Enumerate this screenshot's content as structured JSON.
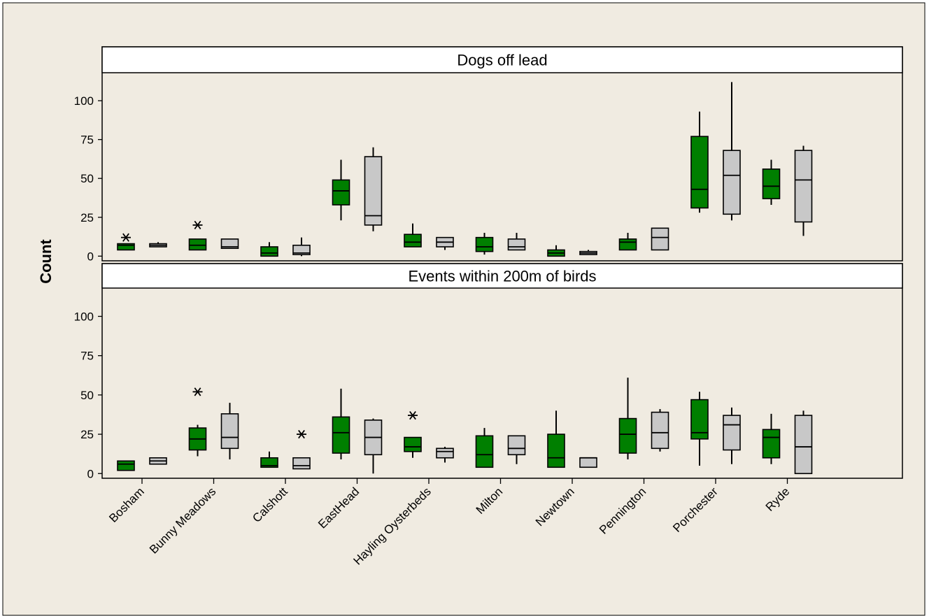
{
  "chart_data": {
    "type": "boxplot",
    "ylabel": "Count",
    "categories": [
      "Bosham",
      "Bunny Meadows",
      "Calshott",
      "EastHead",
      "Hayling Oysterbeds",
      "Milton",
      "Newtown",
      "Pennington",
      "Porchester",
      "Ryde"
    ],
    "y_ticks": [
      0,
      25,
      50,
      75,
      100
    ],
    "ylim": [
      -3,
      118
    ],
    "colors": {
      "green": "#007f00",
      "grey": "#c8c8c8",
      "background": "#f0ebe1"
    },
    "panels": [
      {
        "title": "Dogs off lead",
        "boxes": [
          {
            "category": "Bosham",
            "group": "green",
            "whisker_low": 4,
            "q1": 4,
            "median": 7,
            "q3": 8,
            "whisker_high": 8,
            "outliers": [
              12
            ]
          },
          {
            "category": "Bosham",
            "group": "grey",
            "whisker_low": 6,
            "q1": 6,
            "median": 7,
            "q3": 8,
            "whisker_high": 9,
            "outliers": []
          },
          {
            "category": "Bunny Meadows",
            "group": "green",
            "whisker_low": 4,
            "q1": 4,
            "median": 7,
            "q3": 11,
            "whisker_high": 11,
            "outliers": [
              20
            ]
          },
          {
            "category": "Bunny Meadows",
            "group": "grey",
            "whisker_low": 5,
            "q1": 5,
            "median": 6,
            "q3": 11,
            "whisker_high": 11,
            "outliers": []
          },
          {
            "category": "Calshott",
            "group": "green",
            "whisker_low": 0,
            "q1": 0,
            "median": 2,
            "q3": 6,
            "whisker_high": 9,
            "outliers": []
          },
          {
            "category": "Calshott",
            "group": "grey",
            "whisker_low": 0,
            "q1": 1,
            "median": 2,
            "q3": 7,
            "whisker_high": 12,
            "outliers": []
          },
          {
            "category": "EastHead",
            "group": "green",
            "whisker_low": 23,
            "q1": 33,
            "median": 42,
            "q3": 49,
            "whisker_high": 62,
            "outliers": []
          },
          {
            "category": "EastHead",
            "group": "grey",
            "whisker_low": 16,
            "q1": 20,
            "median": 26,
            "q3": 64,
            "whisker_high": 70,
            "outliers": []
          },
          {
            "category": "Hayling Oysterbeds",
            "group": "green",
            "whisker_low": 6,
            "q1": 6,
            "median": 9,
            "q3": 14,
            "whisker_high": 21,
            "outliers": []
          },
          {
            "category": "Hayling Oysterbeds",
            "group": "grey",
            "whisker_low": 4,
            "q1": 6,
            "median": 9,
            "q3": 12,
            "whisker_high": 12,
            "outliers": []
          },
          {
            "category": "Milton",
            "group": "green",
            "whisker_low": 1,
            "q1": 3,
            "median": 6,
            "q3": 12,
            "whisker_high": 15,
            "outliers": []
          },
          {
            "category": "Milton",
            "group": "grey",
            "whisker_low": 4,
            "q1": 4,
            "median": 6,
            "q3": 11,
            "whisker_high": 15,
            "outliers": []
          },
          {
            "category": "Newtown",
            "group": "green",
            "whisker_low": 0,
            "q1": 0,
            "median": 2,
            "q3": 4,
            "whisker_high": 7,
            "outliers": []
          },
          {
            "category": "Newtown",
            "group": "grey",
            "whisker_low": 1,
            "q1": 1,
            "median": 2,
            "q3": 3,
            "whisker_high": 4,
            "outliers": []
          },
          {
            "category": "Pennington",
            "group": "green",
            "whisker_low": 4,
            "q1": 4,
            "median": 9,
            "q3": 11,
            "whisker_high": 15,
            "outliers": []
          },
          {
            "category": "Pennington",
            "group": "grey",
            "whisker_low": 4,
            "q1": 4,
            "median": 12,
            "q3": 18,
            "whisker_high": 18,
            "outliers": []
          },
          {
            "category": "Porchester",
            "group": "green",
            "whisker_low": 28,
            "q1": 31,
            "median": 43,
            "q3": 77,
            "whisker_high": 93,
            "outliers": []
          },
          {
            "category": "Porchester",
            "group": "grey",
            "whisker_low": 23,
            "q1": 27,
            "median": 52,
            "q3": 68,
            "whisker_high": 112,
            "outliers": []
          },
          {
            "category": "Ryde",
            "group": "green",
            "whisker_low": 33,
            "q1": 37,
            "median": 45,
            "q3": 56,
            "whisker_high": 62,
            "outliers": []
          },
          {
            "category": "Ryde",
            "group": "grey",
            "whisker_low": 13,
            "q1": 22,
            "median": 49,
            "q3": 68,
            "whisker_high": 71,
            "outliers": []
          }
        ]
      },
      {
        "title": "Events within 200m of birds",
        "boxes": [
          {
            "category": "Bosham",
            "group": "green",
            "whisker_low": 2,
            "q1": 2,
            "median": 6,
            "q3": 8,
            "whisker_high": 8,
            "outliers": []
          },
          {
            "category": "Bosham",
            "group": "grey",
            "whisker_low": 6,
            "q1": 6,
            "median": 8,
            "q3": 10,
            "whisker_high": 10,
            "outliers": []
          },
          {
            "category": "Bunny Meadows",
            "group": "green",
            "whisker_low": 11,
            "q1": 15,
            "median": 22,
            "q3": 29,
            "whisker_high": 31,
            "outliers": [
              52
            ]
          },
          {
            "category": "Bunny Meadows",
            "group": "grey",
            "whisker_low": 9,
            "q1": 16,
            "median": 23,
            "q3": 38,
            "whisker_high": 45,
            "outliers": []
          },
          {
            "category": "Calshott",
            "group": "green",
            "whisker_low": 4,
            "q1": 4,
            "median": 5,
            "q3": 10,
            "whisker_high": 14,
            "outliers": []
          },
          {
            "category": "Calshott",
            "group": "grey",
            "whisker_low": 3,
            "q1": 3,
            "median": 5,
            "q3": 10,
            "whisker_high": 10,
            "outliers": [
              25
            ]
          },
          {
            "category": "EastHead",
            "group": "green",
            "whisker_low": 9,
            "q1": 13,
            "median": 26,
            "q3": 36,
            "whisker_high": 54,
            "outliers": []
          },
          {
            "category": "EastHead",
            "group": "grey",
            "whisker_low": 0,
            "q1": 12,
            "median": 23,
            "q3": 34,
            "whisker_high": 35,
            "outliers": []
          },
          {
            "category": "Hayling Oysterbeds",
            "group": "green",
            "whisker_low": 10,
            "q1": 14,
            "median": 17,
            "q3": 23,
            "whisker_high": 23,
            "outliers": [
              37
            ]
          },
          {
            "category": "Hayling Oysterbeds",
            "group": "grey",
            "whisker_low": 7,
            "q1": 10,
            "median": 14,
            "q3": 16,
            "whisker_high": 17,
            "outliers": []
          },
          {
            "category": "Milton",
            "group": "green",
            "whisker_low": 4,
            "q1": 4,
            "median": 12,
            "q3": 24,
            "whisker_high": 29,
            "outliers": []
          },
          {
            "category": "Milton",
            "group": "grey",
            "whisker_low": 6,
            "q1": 12,
            "median": 16,
            "q3": 24,
            "whisker_high": 24,
            "outliers": []
          },
          {
            "category": "Newtown",
            "group": "green",
            "whisker_low": 4,
            "q1": 4,
            "median": 10,
            "q3": 25,
            "whisker_high": 40,
            "outliers": []
          },
          {
            "category": "Newtown",
            "group": "grey",
            "whisker_low": 4,
            "q1": 4,
            "median": 10,
            "q3": 10,
            "whisker_high": 10,
            "outliers": []
          },
          {
            "category": "Pennington",
            "group": "green",
            "whisker_low": 9,
            "q1": 13,
            "median": 25,
            "q3": 35,
            "whisker_high": 61,
            "outliers": []
          },
          {
            "category": "Pennington",
            "group": "grey",
            "whisker_low": 14,
            "q1": 16,
            "median": 26,
            "q3": 39,
            "whisker_high": 41,
            "outliers": []
          },
          {
            "category": "Porchester",
            "group": "green",
            "whisker_low": 5,
            "q1": 22,
            "median": 26,
            "q3": 47,
            "whisker_high": 52,
            "outliers": []
          },
          {
            "category": "Porchester",
            "group": "grey",
            "whisker_low": 6,
            "q1": 15,
            "median": 31,
            "q3": 37,
            "whisker_high": 42,
            "outliers": []
          },
          {
            "category": "Ryde",
            "group": "green",
            "whisker_low": 6,
            "q1": 10,
            "median": 23,
            "q3": 28,
            "whisker_high": 38,
            "outliers": []
          },
          {
            "category": "Ryde",
            "group": "grey",
            "whisker_low": 0,
            "q1": 0,
            "median": 17,
            "q3": 37,
            "whisker_high": 40,
            "outliers": []
          }
        ]
      }
    ]
  }
}
